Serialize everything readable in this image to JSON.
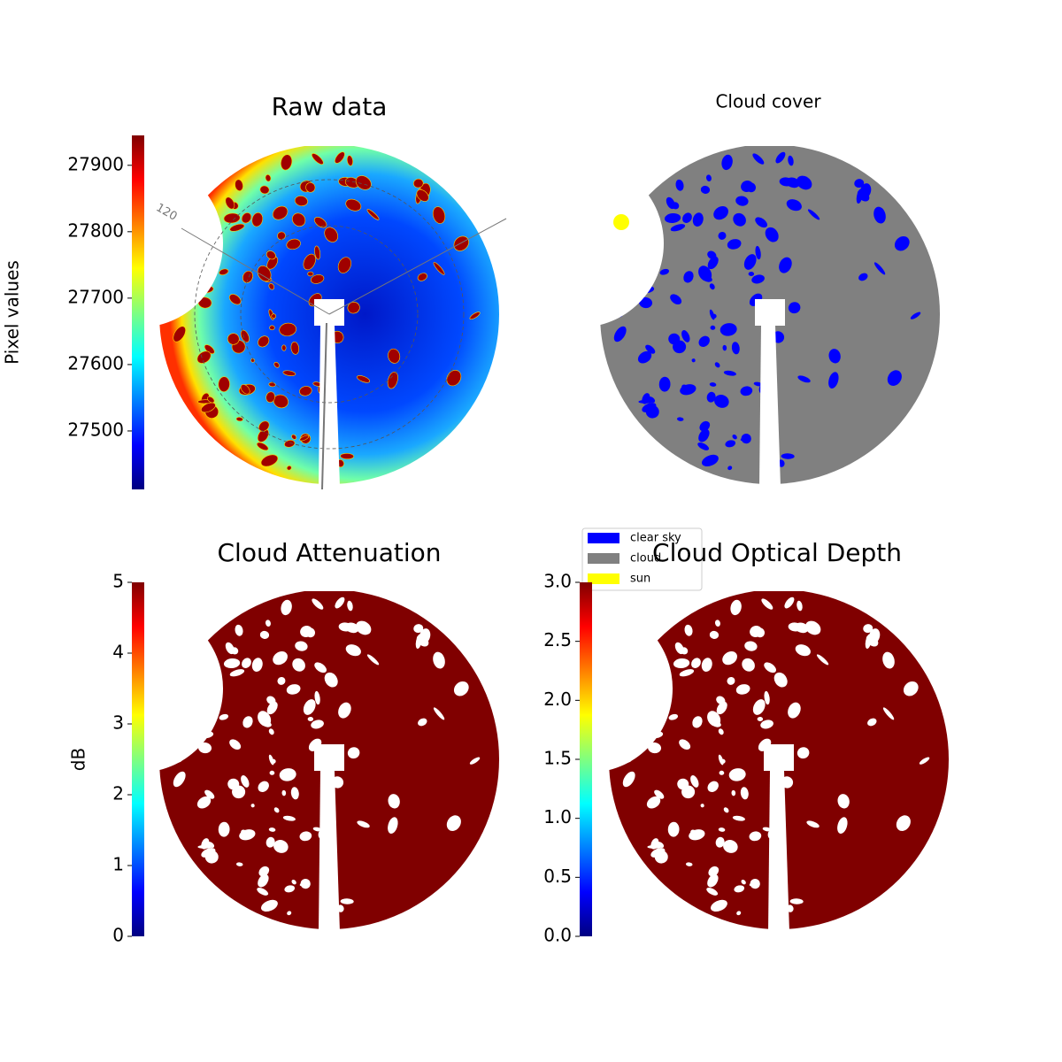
{
  "chart_data": [
    {
      "type": "image",
      "title": "Raw data",
      "colormap": "jet",
      "colorbar_label": "Pixel values",
      "clim": [
        27412,
        27945
      ],
      "ticks": [
        27500,
        27600,
        27700,
        27800,
        27900
      ],
      "annotations": [
        "120"
      ]
    },
    {
      "type": "classification",
      "title": "Cloud cover",
      "legend": [
        {
          "name": "clear sky",
          "color": "#0000ff"
        },
        {
          "name": "cloud",
          "color": "#808080"
        },
        {
          "name": "sun",
          "color": "#ffff00"
        }
      ]
    },
    {
      "type": "image",
      "title": "Cloud Attenuation",
      "colormap": "jet",
      "colorbar_label": "dB",
      "clim": [
        0,
        5
      ],
      "ticks": [
        0,
        1,
        2,
        3,
        4,
        5
      ]
    },
    {
      "type": "image",
      "title": "Cloud Optical Depth",
      "colormap": "jet",
      "clim": [
        0,
        3
      ],
      "ticks": [
        {
          "value": 0,
          "label": "0.0"
        },
        0.5,
        {
          "value": 1,
          "label": "1.0"
        },
        1.5,
        {
          "value": 2,
          "label": "2.0"
        },
        2.5,
        {
          "value": 3,
          "label": "3.0"
        }
      ]
    }
  ]
}
